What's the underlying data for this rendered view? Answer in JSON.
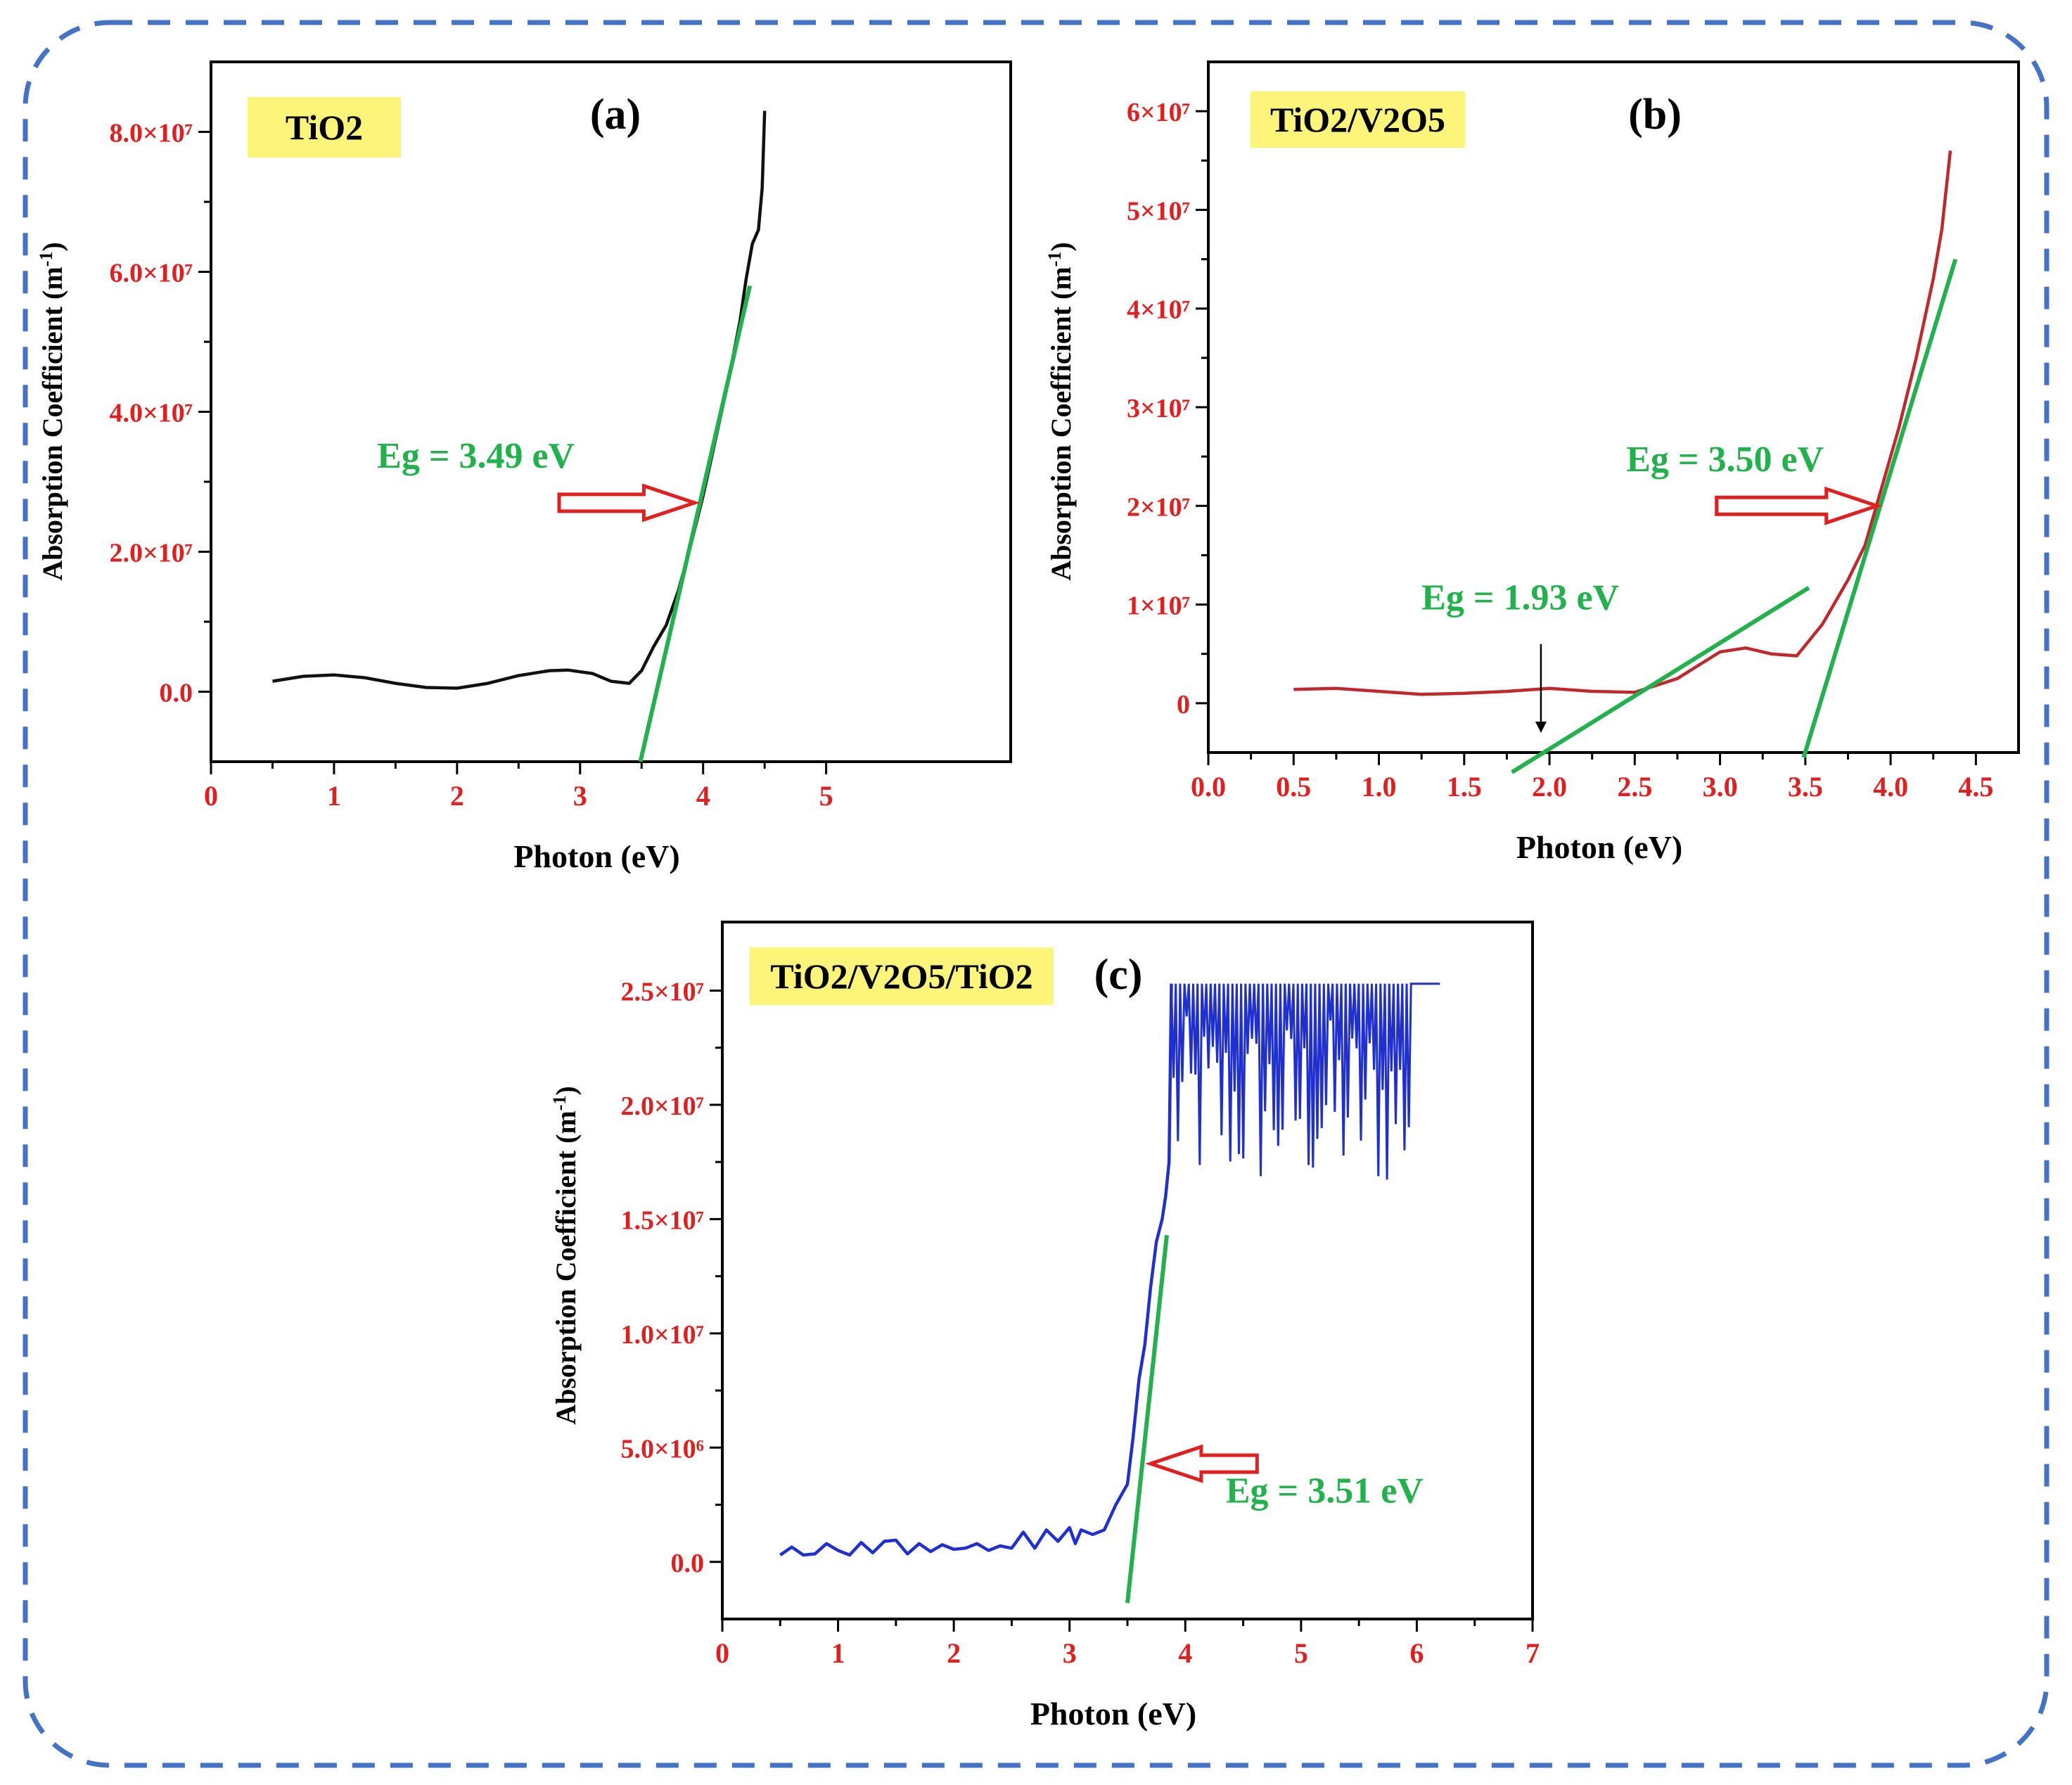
{
  "figure": {
    "border_color": "#4472c4",
    "tick_label_color": "#e02020",
    "badge_color": "#fdf57a",
    "annotation_color": "#22b14c",
    "arrow_color": "#e02020"
  },
  "chart_data": [
    {
      "type": "line",
      "panel_label": "(a)",
      "sample_label": "TiO2",
      "title": "",
      "xlabel": "Photon (eV)",
      "ylabel": "Absorption Coefficient (m-1)",
      "xlim": [
        0,
        6.5
      ],
      "ylim": [
        -10000000.0,
        90000000.0
      ],
      "x_ticks": [
        0,
        1,
        2,
        3,
        4,
        5
      ],
      "x_tick_labels": [
        "0",
        "1",
        "2",
        "3",
        "4",
        "5"
      ],
      "y_ticks": [
        0,
        20000000.0,
        40000000.0,
        60000000.0,
        80000000.0
      ],
      "y_tick_labels": [
        "0.0",
        "2.0×10⁷",
        "4.0×10⁷",
        "6.0×10⁷",
        "8.0×10⁷"
      ],
      "series_color": "#111111",
      "series": [
        {
          "name": "TiO2",
          "x": [
            0.5,
            0.75,
            1.0,
            1.25,
            1.5,
            1.75,
            2.0,
            2.25,
            2.5,
            2.75,
            2.9,
            3.1,
            3.25,
            3.4,
            3.5,
            3.6,
            3.7,
            3.8,
            3.9,
            4.0,
            4.1,
            4.2,
            4.3,
            4.35,
            4.4,
            4.45,
            4.48,
            4.5
          ],
          "values": [
            1500000.0,
            2200000.0,
            2400000.0,
            2000000.0,
            1200000.0,
            600000.0,
            500000.0,
            1200000.0,
            2300000.0,
            3000000.0,
            3100000.0,
            2600000.0,
            1500000.0,
            1200000.0,
            3000000.0,
            6500000.0,
            9500000.0,
            14500000.0,
            21000000.0,
            28000000.0,
            36000000.0,
            44000000.0,
            53000000.0,
            59000000.0,
            64000000.0,
            66000000.0,
            72000000.0,
            83000000.0
          ]
        }
      ],
      "tangent": {
        "x": [
          3.49,
          4.38
        ],
        "y": [
          -10000000.0,
          58000000.0
        ]
      },
      "annotations": [
        {
          "text": "Eg = 3.49 eV",
          "x": 1.35,
          "y": 32000000.0
        },
        {
          "arrow": "right",
          "x1": 2.83,
          "x2": 3.93,
          "y": 27000000.0
        }
      ]
    },
    {
      "type": "line",
      "panel_label": "(b)",
      "sample_label": "TiO2/V2O5",
      "title": "",
      "xlabel": "Photon (eV)",
      "ylabel": "Absorption Coefficient (m-1)",
      "xlim": [
        0,
        4.75
      ],
      "ylim": [
        -5000000.0,
        65000000.0
      ],
      "x_ticks": [
        0.0,
        0.5,
        1.0,
        1.5,
        2.0,
        2.5,
        3.0,
        3.5,
        4.0,
        4.5
      ],
      "x_tick_labels": [
        "0.0",
        "0.5",
        "1.0",
        "1.5",
        "2.0",
        "2.5",
        "3.0",
        "3.5",
        "4.0",
        "4.5"
      ],
      "y_ticks": [
        0,
        10000000.0,
        20000000.0,
        30000000.0,
        40000000.0,
        50000000.0,
        60000000.0
      ],
      "y_tick_labels": [
        "0",
        "1×10⁷",
        "2×10⁷",
        "3×10⁷",
        "4×10⁷",
        "5×10⁷",
        "6×10⁷"
      ],
      "series_color": "#c0282d",
      "series": [
        {
          "name": "TiO2/V2O5",
          "x": [
            0.5,
            0.75,
            1.0,
            1.25,
            1.5,
            1.75,
            2.0,
            2.25,
            2.5,
            2.75,
            3.0,
            3.15,
            3.3,
            3.45,
            3.6,
            3.75,
            3.85,
            3.95,
            4.05,
            4.15,
            4.25,
            4.3,
            4.35
          ],
          "values": [
            1400000.0,
            1500000.0,
            1200000.0,
            900000.0,
            1000000.0,
            1200000.0,
            1500000.0,
            1200000.0,
            1100000.0,
            2500000.0,
            5200000.0,
            5600000.0,
            5000000.0,
            4800000.0,
            8000000.0,
            12500000.0,
            16000000.0,
            22000000.0,
            28000000.0,
            35000000.0,
            43000000.0,
            48000000.0,
            56000000.0
          ]
        }
      ],
      "tangents": [
        {
          "x": [
            1.78,
            3.52
          ],
          "y": [
            -7000000.0,
            11700000.0
          ]
        },
        {
          "x": [
            3.49,
            4.38
          ],
          "y": [
            -5500000.0,
            45000000.0
          ]
        }
      ],
      "annotations": [
        {
          "text": "Eg = 3.50 eV",
          "x": 2.45,
          "y": 23500000.0
        },
        {
          "arrow": "right",
          "x1": 2.98,
          "x2": 3.92,
          "y": 20000000.0
        },
        {
          "text": "Eg = 1.93 eV",
          "x": 1.25,
          "y": 9500000.0
        },
        {
          "arrow": "down",
          "x": 1.95,
          "y1": 6000000.0,
          "y2": -3000000.0
        }
      ]
    },
    {
      "type": "line",
      "panel_label": "(c)",
      "sample_label": "TiO2/V2O5/TiO2",
      "title": "",
      "xlabel": "Photon (eV)",
      "ylabel": "Absorption Coefficient (m-1)",
      "xlim": [
        0,
        7
      ],
      "ylim": [
        -2500000.0,
        28000000.0
      ],
      "x_ticks": [
        0,
        1,
        2,
        3,
        4,
        5,
        6,
        7
      ],
      "x_tick_labels": [
        "0",
        "1",
        "2",
        "3",
        "4",
        "5",
        "6",
        "7"
      ],
      "y_ticks": [
        0,
        5000000.0,
        10000000.0,
        15000000.0,
        20000000.0,
        25000000.0
      ],
      "y_tick_labels": [
        "0.0",
        "5.0×10⁶",
        "1.0×10⁷",
        "1.5×10⁷",
        "2.0×10⁷",
        "2.5×10⁷"
      ],
      "series_color": "#1f2fd0",
      "series": [
        {
          "name": "TiO2/V2O5/TiO2",
          "x": [
            0.5,
            0.6,
            0.7,
            0.8,
            0.9,
            1.0,
            1.1,
            1.2,
            1.3,
            1.4,
            1.5,
            1.6,
            1.7,
            1.8,
            1.9,
            2.0,
            2.1,
            2.2,
            2.3,
            2.4,
            2.5,
            2.6,
            2.7,
            2.8,
            2.9,
            3.0,
            3.05,
            3.1,
            3.2,
            3.3,
            3.4,
            3.5,
            3.55,
            3.6,
            3.65,
            3.7,
            3.75,
            3.8,
            3.83,
            3.86,
            3.88
          ],
          "values": [
            300000.0,
            650000.0,
            300000.0,
            350000.0,
            800000.0,
            500000.0,
            300000.0,
            850000.0,
            400000.0,
            900000.0,
            950000.0,
            350000.0,
            800000.0,
            450000.0,
            750000.0,
            550000.0,
            600000.0,
            800000.0,
            500000.0,
            700000.0,
            600000.0,
            1300000.0,
            600000.0,
            1400000.0,
            900000.0,
            1500000.0,
            800000.0,
            1400000.0,
            1200000.0,
            1400000.0,
            2500000.0,
            3400000.0,
            5500000.0,
            8000000.0,
            9500000.0,
            12000000.0,
            14000000.0,
            15000000.0,
            16000000.0,
            17500000.0,
            25300000.0
          ]
        },
        {
          "name": "TiO2/V2O5/TiO2 noisy plateau",
          "x_start": 3.88,
          "x_end": 6.2,
          "ceiling": 25300000.0,
          "dip_floor": 16000000.0
        }
      ],
      "tangent": {
        "x": [
          3.5,
          3.84
        ],
        "y": [
          -1800000.0,
          14300000.0
        ]
      },
      "annotations": [
        {
          "text": "Eg = 3.51 eV",
          "x": 4.35,
          "y": 2600000.0
        },
        {
          "arrow": "left",
          "x1": 4.62,
          "x2": 3.7,
          "y": 4300000.0
        }
      ]
    }
  ]
}
